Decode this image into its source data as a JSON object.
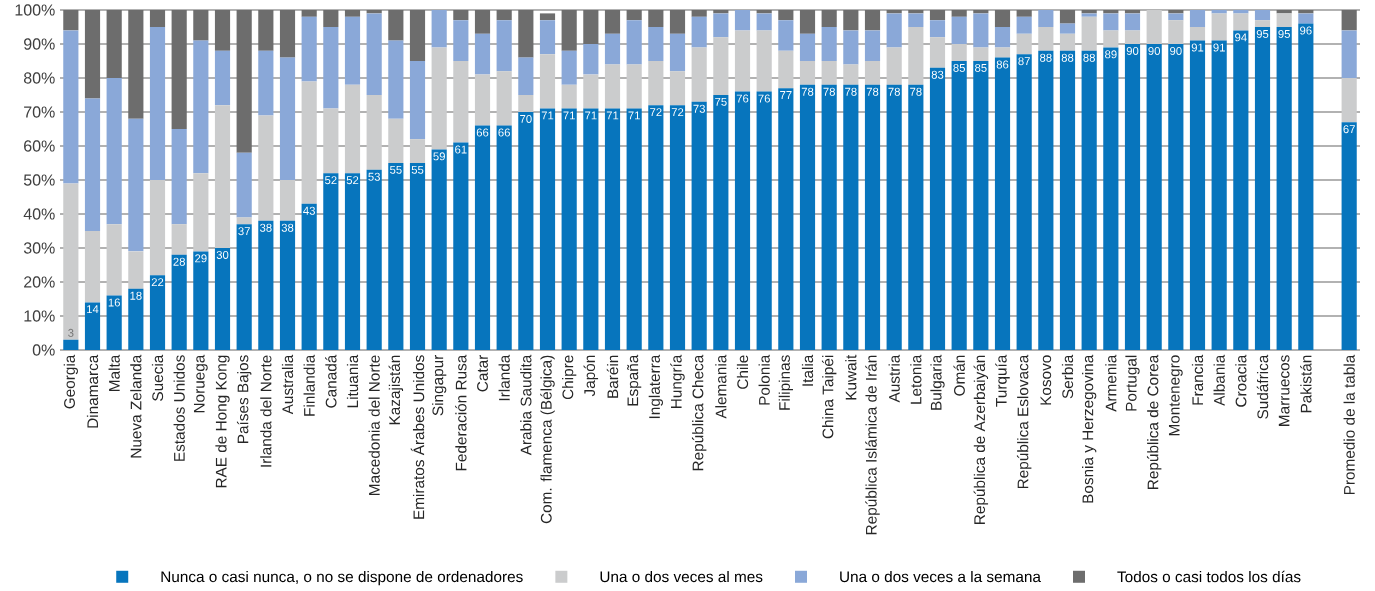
{
  "chart_data": {
    "type": "bar",
    "stacked": true,
    "grid": "y",
    "legend": "bottom",
    "categories": [
      "Georgia",
      "Dinamarca",
      "Malta",
      "Nueva Zelanda",
      "Suecia",
      "Estados Unidos",
      "Noruega",
      "RAE de Hong Kong",
      "Países Bajos",
      "Irlanda del Norte",
      "Australia",
      "Finlandia",
      "Canadá",
      "Lituania",
      "Macedonia del Norte",
      "Kazajistán",
      "Emiratos Árabes Unidos",
      "Singapur",
      "Federación Rusa",
      "Catar",
      "Irlanda",
      "Arabia Saudita",
      "Com. flamenca (Bélgica)",
      "Chipre",
      "Japón",
      "Baréin",
      "España",
      "Inglaterra",
      "Hungría",
      "República Checa",
      "Alemania",
      "Chile",
      "Polonia",
      "Filipinas",
      "Italia",
      "China Taipéi",
      "Kuwait",
      "República Islámica de Irán",
      "Austria",
      "Letonia",
      "Bulgaria",
      "Omán",
      "República de Azerbaiyán",
      "Turquía",
      "República Eslovaca",
      "Kosovo",
      "Serbia",
      "Bosnia y Herzegovina",
      "Armenia",
      "Portugal",
      "República de Corea",
      "Montenegro",
      "Francia",
      "Albania",
      "Croacia",
      "Sudáfrica",
      "Marruecos",
      "Pakistán",
      null,
      "Promedio de la tabla"
    ],
    "ylim": [
      0,
      100
    ],
    "yticks": [
      {
        "value": 0,
        "label": "0%"
      },
      {
        "value": 10,
        "label": "10%"
      },
      {
        "value": 20,
        "label": "20%"
      },
      {
        "value": 30,
        "label": "30%"
      },
      {
        "value": 40,
        "label": "40%"
      },
      {
        "value": 50,
        "label": "50%"
      },
      {
        "value": 60,
        "label": "60%"
      },
      {
        "value": 70,
        "label": "70%"
      },
      {
        "value": 80,
        "label": "80%"
      },
      {
        "value": 90,
        "label": "90%"
      },
      {
        "value": 100,
        "label": "100%"
      }
    ],
    "series": [
      {
        "name": "Nunca o casi nunca, o no se dispone de ordenadores",
        "color": "#0775bd",
        "values": [
          3,
          14,
          16,
          18,
          22,
          28,
          29,
          30,
          37,
          38,
          38,
          43,
          52,
          52,
          53,
          55,
          55,
          59,
          61,
          66,
          66,
          70,
          71,
          71,
          71,
          71,
          71,
          72,
          72,
          73,
          75,
          76,
          76,
          77,
          78,
          78,
          78,
          78,
          78,
          78,
          83,
          85,
          85,
          86,
          87,
          88,
          88,
          88,
          89,
          90,
          90,
          90,
          91,
          91,
          94,
          95,
          95,
          96,
          null,
          67
        ],
        "value_labels": [
          "3",
          "14",
          "16",
          "18",
          "22",
          "28",
          "29",
          "30",
          "37",
          "38",
          "38",
          "43",
          "52",
          "52",
          "53",
          "55",
          "55",
          "59",
          "61",
          "66",
          "66",
          "70",
          "71",
          "71",
          "71",
          "71",
          "71",
          "72",
          "72",
          "73",
          "75",
          "76",
          "76",
          "77",
          "78",
          "78",
          "78",
          "78",
          "78",
          "78",
          "83",
          "85",
          "85",
          "86",
          "87",
          "88",
          "88",
          "88",
          "89",
          "90",
          "90",
          "90",
          "91",
          "91",
          "94",
          "95",
          "95",
          "96",
          null,
          "67"
        ]
      },
      {
        "name": "Una o dos veces al mes",
        "color": "#cbcccd",
        "values": [
          46,
          21,
          21,
          11,
          28,
          9,
          23,
          42,
          2,
          31,
          12,
          36,
          19,
          26,
          22,
          13,
          7,
          30,
          24,
          15,
          16,
          5,
          16,
          7,
          10,
          13,
          13,
          13,
          10,
          16,
          17,
          18,
          18,
          11,
          7,
          7,
          6,
          7,
          11,
          17,
          9,
          5,
          4,
          3,
          6,
          7,
          5,
          10,
          5,
          4,
          10,
          7,
          4,
          8,
          5,
          2,
          4,
          0,
          null,
          13
        ]
      },
      {
        "name": "Una o dos veces a la semana",
        "color": "#8aa8d8",
        "values": [
          45,
          39,
          43,
          39,
          45,
          28,
          39,
          16,
          19,
          19,
          36,
          19,
          24,
          20,
          24,
          23,
          23,
          11,
          12,
          12,
          15,
          11,
          10,
          10,
          9,
          9,
          13,
          10,
          11,
          9,
          7,
          6,
          5,
          9,
          8,
          10,
          10,
          9,
          10,
          4,
          5,
          8,
          10,
          6,
          5,
          5,
          3,
          1,
          5,
          5,
          0,
          2,
          5,
          1,
          1,
          3,
          0,
          3,
          null,
          14
        ]
      },
      {
        "name": "Todos o casi todos los días",
        "color": "#6d6d6d",
        "values": [
          6,
          26,
          20,
          32,
          5,
          35,
          9,
          12,
          42,
          12,
          14,
          2,
          5,
          2,
          1,
          9,
          15,
          0,
          3,
          7,
          3,
          14,
          2,
          12,
          10,
          7,
          3,
          5,
          7,
          2,
          1,
          0,
          1,
          3,
          7,
          5,
          6,
          6,
          1,
          1,
          3,
          2,
          1,
          5,
          2,
          0,
          4,
          1,
          1,
          1,
          0,
          1,
          0,
          0,
          0,
          0,
          1,
          1,
          null,
          6
        ]
      }
    ]
  }
}
